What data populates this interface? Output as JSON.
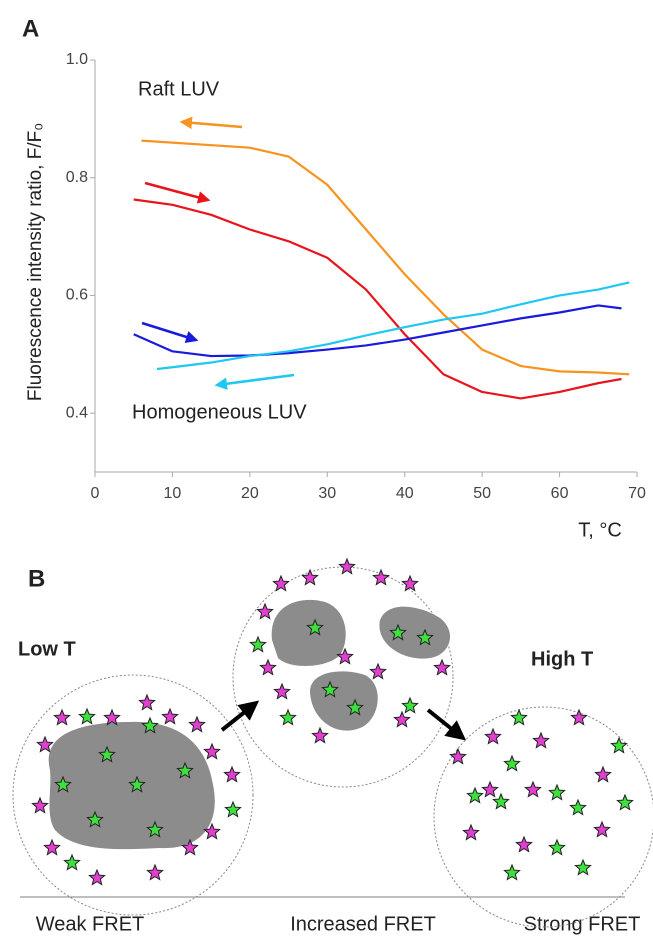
{
  "chart_data": {
    "type": "line",
    "panel_label": "A",
    "y_label": "Fluorescence intensity ratio, F/F₀",
    "x_label": "T, °C",
    "annotations": [
      "Raft LUV",
      "Homogeneous LUV"
    ],
    "xlim": [
      0,
      70
    ],
    "xticks": [
      0,
      10,
      20,
      30,
      40,
      50,
      60,
      70
    ],
    "ylim": [
      0.3,
      1.0
    ],
    "yticks": [
      0.4,
      0.6,
      0.8,
      {
        "value": 1.0,
        "label": "1.0"
      }
    ],
    "series": [
      {
        "color": "#f7931e",
        "x": [
          6,
          20,
          25,
          30,
          35,
          40,
          45,
          50,
          55,
          60,
          65,
          69
        ],
        "values": [
          0.863,
          0.851,
          0.836,
          0.788,
          0.712,
          0.636,
          0.568,
          0.508,
          0.48,
          0.471,
          0.469,
          0.466
        ]
      },
      {
        "color": "#e8141c",
        "x": [
          5,
          10,
          15,
          20,
          25,
          30,
          35,
          40,
          45,
          50,
          55,
          60,
          65,
          68
        ],
        "values": [
          0.763,
          0.754,
          0.737,
          0.712,
          0.692,
          0.664,
          0.61,
          0.534,
          0.466,
          0.436,
          0.425,
          0.436,
          0.451,
          0.458
        ]
      },
      {
        "color": "#1a1adc",
        "x": [
          5,
          10,
          15,
          20,
          25,
          30,
          35,
          40,
          45,
          50,
          55,
          60,
          65,
          68
        ],
        "values": [
          0.534,
          0.505,
          0.497,
          0.498,
          0.502,
          0.508,
          0.515,
          0.525,
          0.537,
          0.549,
          0.561,
          0.571,
          0.583,
          0.578
        ]
      },
      {
        "color": "#1ec8f0",
        "x": [
          8,
          10,
          15,
          20,
          25,
          30,
          35,
          40,
          45,
          50,
          55,
          60,
          65,
          69
        ],
        "values": [
          0.475,
          0.478,
          0.486,
          0.497,
          0.505,
          0.517,
          0.532,
          0.546,
          0.559,
          0.569,
          0.585,
          0.6,
          0.61,
          0.622
        ]
      }
    ]
  },
  "panel_b": {
    "label": "B",
    "low_t": "Low T",
    "high_t": "High T",
    "captions": [
      "Weak FRET",
      "Increased FRET",
      "Strong FRET"
    ]
  }
}
